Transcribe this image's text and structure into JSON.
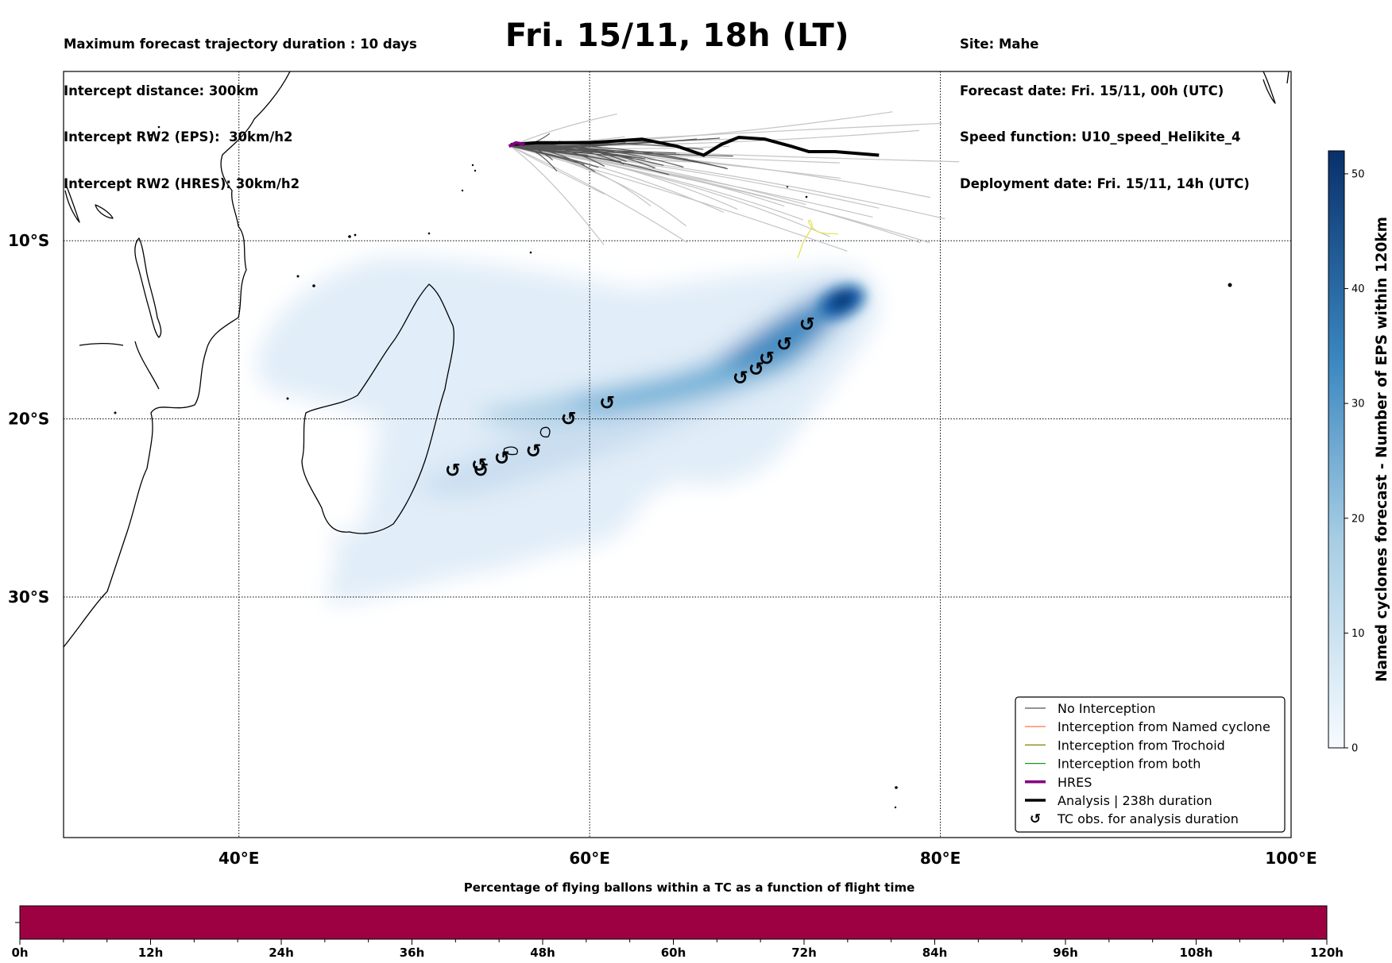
{
  "header": {
    "left_lines": [
      "Maximum forecast trajectory duration : 10 days",
      "Intercept distance: 300km",
      "Intercept RW2 (EPS):  30km/h2",
      "Intercept RW2 (HRES): 30km/h2"
    ],
    "title": "Fri. 15/11, 18h (LT)",
    "right_lines": [
      "Site: Mahe",
      "Forecast date: Fri. 15/11, 00h (UTC)",
      "Speed function: U10_speed_Helikite_4",
      "Deployment date: Fri. 15/11, 14h (UTC)"
    ]
  },
  "map": {
    "lon_range": [
      30,
      100
    ],
    "lat_range": [
      -43.5,
      -0.5
    ],
    "lon_gridlines": [
      40,
      60,
      80
    ],
    "lat_gridlines": [
      -10,
      -20,
      -30
    ],
    "lon_labels": [
      "40°E",
      "60°E",
      "80°E",
      "100°E"
    ],
    "lat_labels": [
      "10°S",
      "20°S",
      "30°S"
    ],
    "analysis_track": [
      [
        55.5,
        -4.6
      ],
      [
        57,
        -4.5
      ],
      [
        60,
        -4.5
      ],
      [
        63,
        -4.3
      ],
      [
        65,
        -4.7
      ],
      [
        66.5,
        -5.2
      ],
      [
        67.5,
        -4.6
      ],
      [
        68.5,
        -4.2
      ],
      [
        70,
        -4.3
      ],
      [
        71.5,
        -4.7
      ],
      [
        72.5,
        -5.0
      ],
      [
        74,
        -5.0
      ],
      [
        76.5,
        -5.2
      ]
    ],
    "hres_track": [
      [
        55.4,
        -4.7
      ],
      [
        55.8,
        -4.5
      ],
      [
        56.3,
        -4.6
      ]
    ],
    "tc_obs": [
      [
        52.2,
        -22.9
      ],
      [
        53.7,
        -22.6
      ],
      [
        53.8,
        -22.9
      ],
      [
        55,
        -22.2
      ],
      [
        56.8,
        -21.8
      ],
      [
        58.8,
        -20.0
      ],
      [
        61,
        -19.1
      ],
      [
        68.6,
        -17.7
      ],
      [
        69.5,
        -17.2
      ],
      [
        70.1,
        -16.6
      ],
      [
        71.1,
        -15.8
      ],
      [
        72.4,
        -14.7
      ]
    ],
    "colors": {
      "no_interception": "#555555",
      "no_interception_light": "#c4c4c4",
      "named_cyclone": "#ff6a2a",
      "trochoid": "#808000",
      "both": "#1a9a1a",
      "hres": "#800080",
      "analysis": "#000000",
      "trochoid_track": "#e6e05a"
    }
  },
  "colorbar": {
    "label": "Named cyclones forecast - Number of EPS within 120km",
    "min": 0,
    "max": 52,
    "ticks": [
      "0",
      "10",
      "20",
      "30",
      "40",
      "50"
    ],
    "colors": [
      "#f7fbff",
      "#08306b"
    ]
  },
  "legend": {
    "items": [
      {
        "label": "No Interception",
        "type": "line",
        "color": "#555555",
        "width": 1.2
      },
      {
        "label": "Interception from Named cyclone",
        "type": "line",
        "color": "#ff6a2a",
        "width": 1.2
      },
      {
        "label": "Interception from Trochoid",
        "type": "line",
        "color": "#808000",
        "width": 1.2
      },
      {
        "label": "Interception from both",
        "type": "line",
        "color": "#1a9a1a",
        "width": 1.2
      },
      {
        "label": "HRES",
        "type": "line",
        "color": "#800080",
        "width": 3.5
      },
      {
        "label": "Analysis | 238h duration",
        "type": "line",
        "color": "#000000",
        "width": 3.5
      },
      {
        "label": "TC obs. for analysis duration",
        "type": "symbol",
        "symbol": "↺"
      }
    ]
  },
  "timebar": {
    "title": "Percentage of flying ballons within a TC as a function of flight time",
    "ticks": [
      "0h",
      "12h",
      "24h",
      "36h",
      "48h",
      "60h",
      "72h",
      "84h",
      "96h",
      "108h",
      "120h"
    ],
    "fill_color": "#9e0142"
  }
}
